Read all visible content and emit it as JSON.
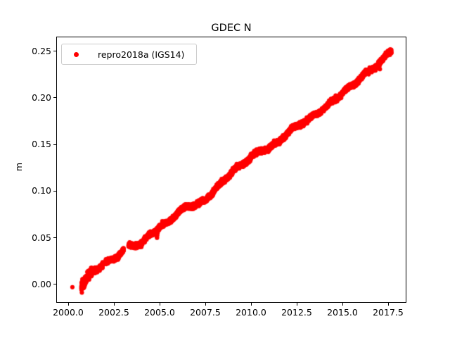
{
  "figure": {
    "background_color": "#ffffff",
    "text_color": "#000000"
  },
  "chart_data": {
    "type": "scatter",
    "title": "GDEC N",
    "xlabel": "",
    "ylabel": "m",
    "grid": false,
    "legend": {
      "position": "upper left",
      "label": "repro2018a (IGS14)",
      "marker_color": "#ff0000",
      "border_color": "#cccccc"
    },
    "marker": {
      "color": "#ff0000",
      "radius_px": 3.1
    },
    "xlim": [
      1999.385,
      2018.462
    ],
    "ylim": [
      -0.0195,
      0.2646
    ],
    "x_ticks": {
      "values": [
        2000.0,
        2002.5,
        2005.0,
        2007.5,
        2010.0,
        2012.5,
        2015.0,
        2017.5
      ],
      "labels": [
        "2000.0",
        "2002.5",
        "2005.0",
        "2007.5",
        "2010.0",
        "2012.5",
        "2015.0",
        "2017.5"
      ]
    },
    "y_ticks": {
      "values": [
        0.0,
        0.05,
        0.1,
        0.15,
        0.2,
        0.25
      ],
      "labels": [
        "0.00",
        "0.05",
        "0.10",
        "0.15",
        "0.20",
        "0.25"
      ]
    },
    "series": [
      {
        "name": "repro2018a (IGS14)",
        "color": "#ff0000",
        "trend_anchors": [
          [
            2000.23,
            -0.0035
          ],
          [
            2000.72,
            -0.001
          ],
          [
            2001.1,
            0.009
          ],
          [
            2001.5,
            0.014
          ],
          [
            2001.9,
            0.0215
          ],
          [
            2002.1,
            0.0235
          ],
          [
            2002.5,
            0.0255
          ],
          [
            2003.0,
            0.0365
          ],
          [
            2003.35,
            0.04
          ],
          [
            2004.0,
            0.0435
          ],
          [
            2004.5,
            0.053
          ],
          [
            2005.0,
            0.0615
          ],
          [
            2005.5,
            0.0655
          ],
          [
            2006.0,
            0.0775
          ],
          [
            2006.5,
            0.0825
          ],
          [
            2007.0,
            0.0855
          ],
          [
            2007.5,
            0.089
          ],
          [
            2008.0,
            0.101
          ],
          [
            2008.5,
            0.11
          ],
          [
            2009.0,
            0.122
          ],
          [
            2009.5,
            0.127
          ],
          [
            2010.0,
            0.137
          ],
          [
            2010.5,
            0.142
          ],
          [
            2011.0,
            0.146
          ],
          [
            2011.5,
            0.152
          ],
          [
            2012.0,
            0.1625
          ],
          [
            2012.5,
            0.169
          ],
          [
            2013.0,
            0.175
          ],
          [
            2013.5,
            0.181
          ],
          [
            2014.0,
            0.1885
          ],
          [
            2014.5,
            0.196
          ],
          [
            2015.0,
            0.2055
          ],
          [
            2015.5,
            0.212
          ],
          [
            2016.0,
            0.2215
          ],
          [
            2016.5,
            0.2285
          ],
          [
            2017.0,
            0.2365
          ],
          [
            2017.3,
            0.2425
          ],
          [
            2017.5,
            0.2475
          ],
          [
            2017.68,
            0.2505
          ]
        ],
        "segments": [
          [
            2000.72,
            2001.9
          ],
          [
            2002.05,
            2003.04
          ],
          [
            2003.3,
            2017.68
          ]
        ],
        "sample_interval_years": 0.003,
        "seasonal_amplitude_m": 0.0013,
        "seasonal_phase_years": 0.08,
        "noise_sigma_m": 0.0012,
        "early_noise_boost_before": 2001.3,
        "early_noise_factor": 2.0,
        "outlier_points": [
          [
            2000.23,
            -0.0035
          ],
          [
            2000.8,
            -0.0035
          ],
          [
            2000.83,
            -0.0045
          ],
          [
            2000.86,
            -0.004
          ],
          [
            2000.85,
            -0.002
          ],
          [
            2000.89,
            -0.0025
          ],
          [
            2000.9,
            0.001
          ],
          [
            2000.92,
            -0.001
          ],
          [
            2000.95,
            0.0005
          ],
          [
            2004.8,
            0.0575
          ],
          [
            2004.82,
            0.0555
          ],
          [
            2004.84,
            0.0535
          ],
          [
            2004.85,
            0.0505
          ],
          [
            2004.86,
            0.0495
          ],
          [
            2004.87,
            0.052
          ],
          [
            2004.89,
            0.0545
          ],
          [
            2004.91,
            0.0565
          ],
          [
            2004.93,
            0.058
          ],
          [
            2004.96,
            0.059
          ],
          [
            2017.05,
            0.2305
          ],
          [
            2017.55,
            0.2495
          ],
          [
            2017.58,
            0.251
          ],
          [
            2017.6,
            0.248
          ],
          [
            2017.61,
            0.2515
          ],
          [
            2017.64,
            0.2505
          ],
          [
            2017.66,
            0.249
          ]
        ]
      }
    ]
  }
}
